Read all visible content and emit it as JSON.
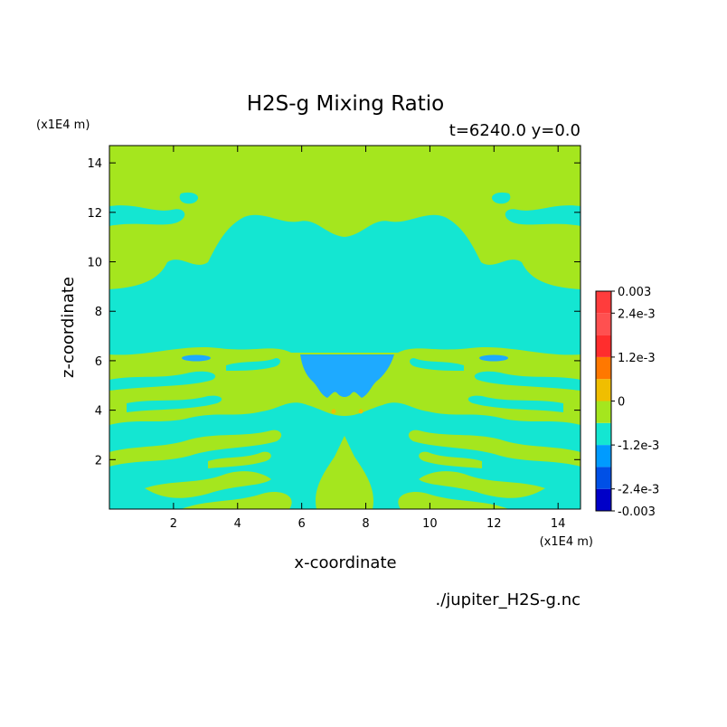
{
  "chart_data": {
    "type": "heatmap",
    "title": "H2S-g Mixing Ratio",
    "subtitle": "t=6240.0 y=0.0",
    "xlabel": "x-coordinate",
    "ylabel": "z-coordinate",
    "x_unit": "(x1E4 m)",
    "y_unit": "(x1E4 m)",
    "xlim": [
      0,
      14.7
    ],
    "ylim": [
      0,
      14.7
    ],
    "x_ticks": [
      2,
      4,
      6,
      8,
      10,
      12,
      14
    ],
    "y_ticks": [
      2,
      4,
      6,
      8,
      10,
      12,
      14
    ],
    "colorbar": {
      "range": [
        -0.003,
        0.003
      ],
      "levels": [
        -0.003,
        -0.0024,
        -0.0018,
        -0.0012,
        -0.0006,
        0,
        0.0006,
        0.0012,
        0.0018,
        0.0024,
        0.003
      ],
      "colors": [
        "#0000c8",
        "#0050e6",
        "#009bff",
        "#14e6d2",
        "#a5e61e",
        "#f0be00",
        "#ff7800",
        "#ff2d2d",
        "#ff5050",
        "#ff3c3c"
      ],
      "tick_labels": [
        {
          "value": 0.003,
          "label": "0.003"
        },
        {
          "value": 0.0024,
          "label": "2.4e-3"
        },
        {
          "value": 0.0012,
          "label": "1.2e-3"
        },
        {
          "value": 0,
          "label": "0"
        },
        {
          "value": -0.0012,
          "label": "-1.2e-3"
        },
        {
          "value": -0.0024,
          "label": "-2.4e-3"
        },
        {
          "value": -0.003,
          "label": "-0.003"
        }
      ]
    },
    "regions": [
      {
        "name": "positive-background",
        "value": 0.0003
      },
      {
        "name": "negative-band",
        "value": -0.0003
      },
      {
        "name": "negative-core",
        "value": -0.0009
      }
    ],
    "colors": {
      "positive": "#a5e61e",
      "negative": "#14e6d2",
      "core": "#1eaaff"
    }
  },
  "footer": {
    "filename": "./jupiter_H2S-g.nc"
  }
}
